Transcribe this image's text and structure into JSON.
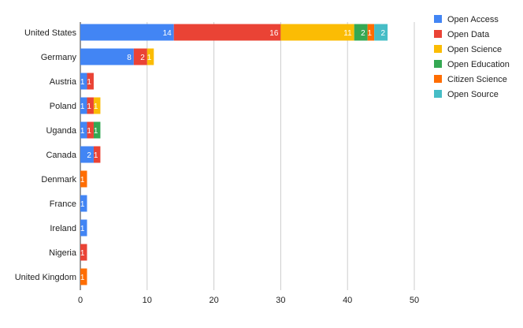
{
  "chart_data": {
    "type": "bar",
    "orientation": "horizontal",
    "stacked": true,
    "categories": [
      "United States",
      "Germany",
      "Austria",
      "Poland",
      "Uganda",
      "Canada",
      "Denmark",
      "France",
      "Ireland",
      "Nigeria",
      "United Kingdom"
    ],
    "series": [
      {
        "name": "Open Access",
        "color": "#4285f4",
        "values": [
          14,
          8,
          1,
          1,
          1,
          2,
          0,
          1,
          1,
          0,
          0
        ]
      },
      {
        "name": "Open Data",
        "color": "#ea4335",
        "values": [
          16,
          2,
          1,
          1,
          1,
          1,
          0,
          0,
          0,
          1,
          0
        ]
      },
      {
        "name": "Open Science",
        "color": "#fbbc04",
        "values": [
          11,
          1,
          0,
          1,
          0,
          0,
          0,
          0,
          0,
          0,
          0
        ]
      },
      {
        "name": "Open Education",
        "color": "#34a853",
        "values": [
          2,
          0,
          0,
          0,
          1,
          0,
          0,
          0,
          0,
          0,
          0
        ]
      },
      {
        "name": "Citizen Science",
        "color": "#ff6d01",
        "values": [
          1,
          0,
          0,
          0,
          0,
          0,
          1,
          0,
          0,
          0,
          1
        ]
      },
      {
        "name": "Open Source",
        "color": "#46bdc6",
        "values": [
          2,
          0,
          0,
          0,
          0,
          0,
          0,
          0,
          0,
          0,
          0
        ]
      }
    ],
    "xlim": [
      0,
      50
    ],
    "xticks": [
      0,
      10,
      20,
      30,
      40,
      50
    ],
    "grid": true,
    "legend_position": "right"
  }
}
